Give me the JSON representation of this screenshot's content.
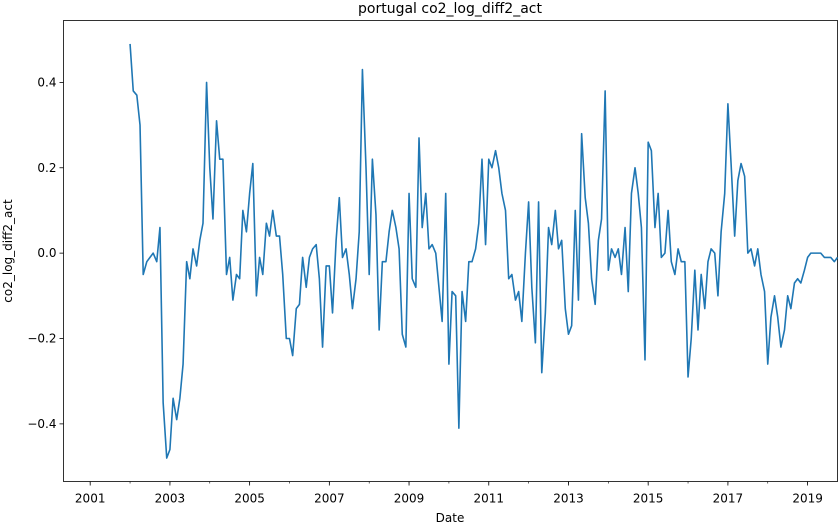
{
  "chart_data": {
    "type": "line",
    "title": "portugal co2_log_diff2_act",
    "xlabel": "Date",
    "ylabel": "co2_log_diff2_act",
    "x_start": 2000.33,
    "x_end": 2019.75,
    "ylim": [
      -0.535,
      0.545
    ],
    "grid": false,
    "color": "#1f77b4",
    "x_ticks": [
      {
        "value": 2001,
        "label": "2001"
      },
      {
        "value": 2003,
        "label": "2003"
      },
      {
        "value": 2005,
        "label": "2005"
      },
      {
        "value": 2007,
        "label": "2007"
      },
      {
        "value": 2009,
        "label": "2009"
      },
      {
        "value": 2011,
        "label": "2011"
      },
      {
        "value": 2013,
        "label": "2013"
      },
      {
        "value": 2015,
        "label": "2015"
      },
      {
        "value": 2017,
        "label": "2017"
      },
      {
        "value": 2019,
        "label": "2019"
      }
    ],
    "y_ticks": [
      {
        "value": 0.4,
        "label": "0.4"
      },
      {
        "value": 0.2,
        "label": "0.2"
      },
      {
        "value": 0.0,
        "label": "0.0"
      },
      {
        "value": -0.2,
        "label": "−0.2"
      },
      {
        "value": -0.4,
        "label": "−0.4"
      }
    ],
    "x": [
      2002.0,
      2002.08,
      2002.17,
      2002.25,
      2002.33,
      2002.42,
      2002.5,
      2002.58,
      2002.67,
      2002.75,
      2002.83,
      2002.92,
      2003.0,
      2003.08,
      2003.17,
      2003.25,
      2003.33,
      2003.42,
      2003.5,
      2003.58,
      2003.67,
      2003.75,
      2003.83,
      2003.92,
      2004.0,
      2004.08,
      2004.17,
      2004.25,
      2004.33,
      2004.42,
      2004.5,
      2004.58,
      2004.67,
      2004.75,
      2004.83,
      2004.92,
      2005.0,
      2005.08,
      2005.17,
      2005.25,
      2005.33,
      2005.42,
      2005.5,
      2005.58,
      2005.67,
      2005.75,
      2005.83,
      2005.92,
      2006.0,
      2006.08,
      2006.17,
      2006.25,
      2006.33,
      2006.42,
      2006.5,
      2006.58,
      2006.67,
      2006.75,
      2006.83,
      2006.92,
      2007.0,
      2007.08,
      2007.17,
      2007.25,
      2007.33,
      2007.42,
      2007.5,
      2007.58,
      2007.67,
      2007.75,
      2007.83,
      2007.92,
      2008.0,
      2008.08,
      2008.17,
      2008.25,
      2008.33,
      2008.42,
      2008.5,
      2008.58,
      2008.67,
      2008.75,
      2008.83,
      2008.92,
      2009.0,
      2009.08,
      2009.17,
      2009.25,
      2009.33,
      2009.42,
      2009.5,
      2009.58,
      2009.67,
      2009.75,
      2009.83,
      2009.92,
      2010.0,
      2010.08,
      2010.17,
      2010.25,
      2010.33,
      2010.42,
      2010.5,
      2010.58,
      2010.67,
      2010.75,
      2010.83,
      2010.92,
      2011.0,
      2011.08,
      2011.17,
      2011.25,
      2011.33,
      2011.42,
      2011.5,
      2011.58,
      2011.67,
      2011.75,
      2011.83,
      2011.92,
      2012.0,
      2012.08,
      2012.17,
      2012.25,
      2012.33,
      2012.42,
      2012.5,
      2012.58,
      2012.67,
      2012.75,
      2012.83,
      2012.92,
      2013.0,
      2013.08,
      2013.17,
      2013.25,
      2013.33,
      2013.42,
      2013.5,
      2013.58,
      2013.67,
      2013.75,
      2013.83,
      2013.92,
      2014.0,
      2014.08,
      2014.17,
      2014.25,
      2014.33,
      2014.42,
      2014.5,
      2014.58,
      2014.67,
      2014.75,
      2014.83,
      2014.92,
      2015.0,
      2015.08,
      2015.17,
      2015.25,
      2015.33,
      2015.42,
      2015.5,
      2015.58,
      2015.67,
      2015.75,
      2015.83,
      2015.92,
      2016.0,
      2016.08,
      2016.17,
      2016.25,
      2016.33,
      2016.42,
      2016.5,
      2016.58,
      2016.67,
      2016.75,
      2016.83,
      2016.92,
      2017.0,
      2017.08,
      2017.17,
      2017.25,
      2017.33,
      2017.42,
      2017.5,
      2017.58,
      2017.67,
      2017.75,
      2017.83,
      2017.92,
      2018.0,
      2018.08,
      2018.17,
      2018.25,
      2018.33,
      2018.42,
      2018.5,
      2018.58,
      2018.67,
      2018.75,
      2018.83,
      2018.92,
      2019.0,
      2019.08,
      2019.17,
      2019.25,
      2019.33,
      2019.42,
      2019.5,
      2019.58,
      2019.67,
      2019.75
    ],
    "values": [
      0.49,
      0.38,
      0.37,
      0.3,
      -0.05,
      -0.02,
      -0.01,
      0.0,
      -0.02,
      0.06,
      -0.35,
      -0.48,
      -0.46,
      -0.34,
      -0.39,
      -0.34,
      -0.26,
      -0.02,
      -0.06,
      0.01,
      -0.03,
      0.03,
      0.07,
      0.4,
      0.2,
      0.08,
      0.31,
      0.22,
      0.22,
      -0.05,
      -0.01,
      -0.11,
      -0.05,
      -0.06,
      0.1,
      0.05,
      0.14,
      0.21,
      -0.1,
      -0.01,
      -0.05,
      0.07,
      0.04,
      0.1,
      0.04,
      0.04,
      -0.05,
      -0.2,
      -0.2,
      -0.24,
      -0.13,
      -0.12,
      -0.01,
      -0.08,
      -0.01,
      0.01,
      0.02,
      -0.06,
      -0.22,
      -0.03,
      -0.03,
      -0.14,
      0.03,
      0.13,
      -0.01,
      0.01,
      -0.05,
      -0.13,
      -0.06,
      0.05,
      0.43,
      0.2,
      -0.05,
      0.22,
      0.09,
      -0.18,
      -0.02,
      -0.02,
      0.05,
      0.1,
      0.06,
      0.01,
      -0.19,
      -0.22,
      0.14,
      -0.06,
      -0.08,
      0.27,
      0.06,
      0.14,
      0.01,
      0.02,
      0.0,
      -0.08,
      -0.16,
      0.14,
      -0.26,
      -0.09,
      -0.1,
      -0.41,
      -0.09,
      -0.16,
      -0.02,
      -0.02,
      0.01,
      0.07,
      0.22,
      0.02,
      0.22,
      0.2,
      0.24,
      0.2,
      0.14,
      0.1,
      -0.06,
      -0.05,
      -0.11,
      -0.09,
      -0.16,
      0.0,
      0.12,
      -0.08,
      -0.21,
      0.12,
      -0.28,
      -0.14,
      0.06,
      0.02,
      0.1,
      0.01,
      0.03,
      -0.13,
      -0.19,
      -0.17,
      0.1,
      -0.11,
      0.28,
      0.13,
      0.07,
      -0.06,
      -0.12,
      0.03,
      0.08,
      0.38,
      -0.04,
      0.01,
      -0.01,
      0.01,
      -0.05,
      0.06,
      -0.09,
      0.14,
      0.2,
      0.14,
      0.06,
      -0.25,
      0.26,
      0.24,
      0.06,
      0.14,
      -0.01,
      0.0,
      0.1,
      -0.02,
      -0.05,
      0.01,
      -0.02,
      -0.02,
      -0.29,
      -0.2,
      -0.04,
      -0.18,
      -0.05,
      -0.13,
      -0.02,
      0.01,
      0.0,
      -0.1,
      0.05,
      0.14,
      0.35,
      0.21,
      0.04,
      0.17,
      0.21,
      0.18,
      0.0,
      0.01,
      -0.03,
      0.01,
      -0.05,
      -0.09,
      -0.26,
      -0.15,
      -0.1,
      -0.15,
      -0.22,
      -0.18,
      -0.1,
      -0.13,
      -0.07,
      -0.06,
      -0.07,
      -0.04,
      -0.01,
      0.0,
      0.0,
      0.0,
      0.0,
      -0.01,
      -0.01,
      -0.01,
      -0.02,
      -0.01
    ]
  }
}
